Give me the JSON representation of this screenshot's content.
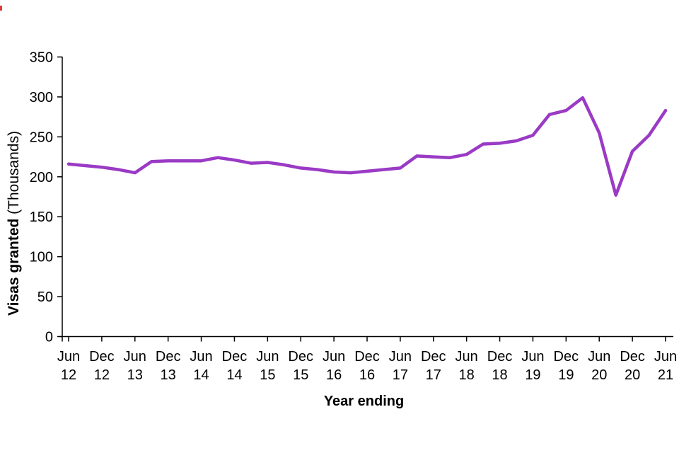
{
  "chart_data": {
    "type": "line",
    "title": "",
    "xlabel": "Year ending",
    "ylabel": "Visas granted (Thousands)",
    "ylabel_bold": "Visas granted",
    "ylabel_paren": "(Thousands)",
    "ylim": [
      0,
      350
    ],
    "yticks": [
      0,
      50,
      100,
      150,
      200,
      250,
      300,
      350
    ],
    "grid": false,
    "legend_position": "none",
    "line_color": "#9a3ac5",
    "axis_color": "#000000",
    "x_ticks": [
      {
        "m": "Jun",
        "y": "12"
      },
      {
        "m": "Dec",
        "y": "12"
      },
      {
        "m": "Jun",
        "y": "13"
      },
      {
        "m": "Dec",
        "y": "13"
      },
      {
        "m": "Jun",
        "y": "14"
      },
      {
        "m": "Dec",
        "y": "14"
      },
      {
        "m": "Jun",
        "y": "15"
      },
      {
        "m": "Dec",
        "y": "15"
      },
      {
        "m": "Jun",
        "y": "16"
      },
      {
        "m": "Dec",
        "y": "16"
      },
      {
        "m": "Jun",
        "y": "17"
      },
      {
        "m": "Dec",
        "y": "17"
      },
      {
        "m": "Jun",
        "y": "18"
      },
      {
        "m": "Dec",
        "y": "18"
      },
      {
        "m": "Jun",
        "y": "19"
      },
      {
        "m": "Dec",
        "y": "19"
      },
      {
        "m": "Jun",
        "y": "20"
      },
      {
        "m": "Dec",
        "y": "20"
      },
      {
        "m": "Jun",
        "y": "21"
      }
    ],
    "x": [
      "Jun 12",
      "Sep 12",
      "Dec 12",
      "Mar 13",
      "Jun 13",
      "Sep 13",
      "Dec 13",
      "Mar 14",
      "Jun 14",
      "Sep 14",
      "Dec 14",
      "Mar 15",
      "Jun 15",
      "Sep 15",
      "Dec 15",
      "Mar 16",
      "Jun 16",
      "Sep 16",
      "Dec 16",
      "Mar 17",
      "Jun 17",
      "Sep 17",
      "Dec 17",
      "Mar 18",
      "Jun 18",
      "Sep 18",
      "Dec 18",
      "Mar 19",
      "Jun 19",
      "Sep 19",
      "Dec 19",
      "Mar 20",
      "Jun 20",
      "Sep 20",
      "Dec 20",
      "Mar 21",
      "Jun 21"
    ],
    "series": [
      {
        "name": "Visas granted (Thousands)",
        "values": [
          216,
          214,
          212,
          209,
          205,
          219,
          220,
          220,
          220,
          224,
          221,
          217,
          218,
          215,
          211,
          209,
          206,
          205,
          207,
          209,
          211,
          226,
          225,
          224,
          228,
          241,
          242,
          245,
          252,
          278,
          283,
          299,
          255,
          177,
          232,
          252,
          283
        ]
      }
    ]
  }
}
